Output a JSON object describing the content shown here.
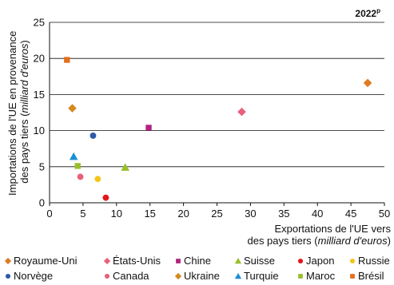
{
  "chart_data": {
    "type": "scatter",
    "year_label": "2022",
    "year_superscript": "p",
    "xlabel": {
      "line1": "Exportations de l'UE vers",
      "line2_prefix": "des pays tiers (",
      "line2_italic": "milliard d'euros",
      "line2_suffix": ")"
    },
    "ylabel": {
      "line1": "Importations de l'UE en provenance",
      "line2_prefix": "des pays tiers (",
      "line2_italic": "milliard d'euros",
      "line2_suffix": ")"
    },
    "xlim": [
      0,
      50
    ],
    "ylim": [
      0,
      25
    ],
    "x_ticks": [
      0,
      5,
      10,
      15,
      20,
      25,
      30,
      35,
      40,
      45,
      50
    ],
    "y_ticks": [
      0,
      5,
      10,
      15,
      20,
      25
    ],
    "grid": "horizontal",
    "series": [
      {
        "name": "Royaume-Uni",
        "marker": "diamond",
        "color": "#e07b22",
        "x": 47.5,
        "y": 16.6
      },
      {
        "name": "États-Unis",
        "marker": "diamond",
        "color": "#e8607a",
        "x": 28.7,
        "y": 12.6
      },
      {
        "name": "Chine",
        "marker": "square",
        "color": "#b0237e",
        "x": 14.8,
        "y": 10.4
      },
      {
        "name": "Suisse",
        "marker": "triangle",
        "color": "#98bf2a",
        "x": 11.3,
        "y": 4.9
      },
      {
        "name": "Japon",
        "marker": "circle",
        "color": "#e3161b",
        "x": 8.4,
        "y": 0.7
      },
      {
        "name": "Russie",
        "marker": "circle",
        "color": "#f5c518",
        "x": 7.2,
        "y": 3.3
      },
      {
        "name": "Norvège",
        "marker": "circle",
        "color": "#2e5aa8",
        "x": 6.5,
        "y": 9.3
      },
      {
        "name": "Canada",
        "marker": "circle",
        "color": "#e8607a",
        "x": 4.6,
        "y": 3.6
      },
      {
        "name": "Ukraine",
        "marker": "diamond",
        "color": "#d4891d",
        "x": 3.4,
        "y": 13.1
      },
      {
        "name": "Turquie",
        "marker": "triangle",
        "color": "#1c8fd6",
        "x": 3.6,
        "y": 6.4
      },
      {
        "name": "Maroc",
        "marker": "square",
        "color": "#98bf2a",
        "x": 4.2,
        "y": 5.1
      },
      {
        "name": "Brésil",
        "marker": "square",
        "color": "#e36e1c",
        "x": 2.6,
        "y": 19.8
      }
    ]
  }
}
